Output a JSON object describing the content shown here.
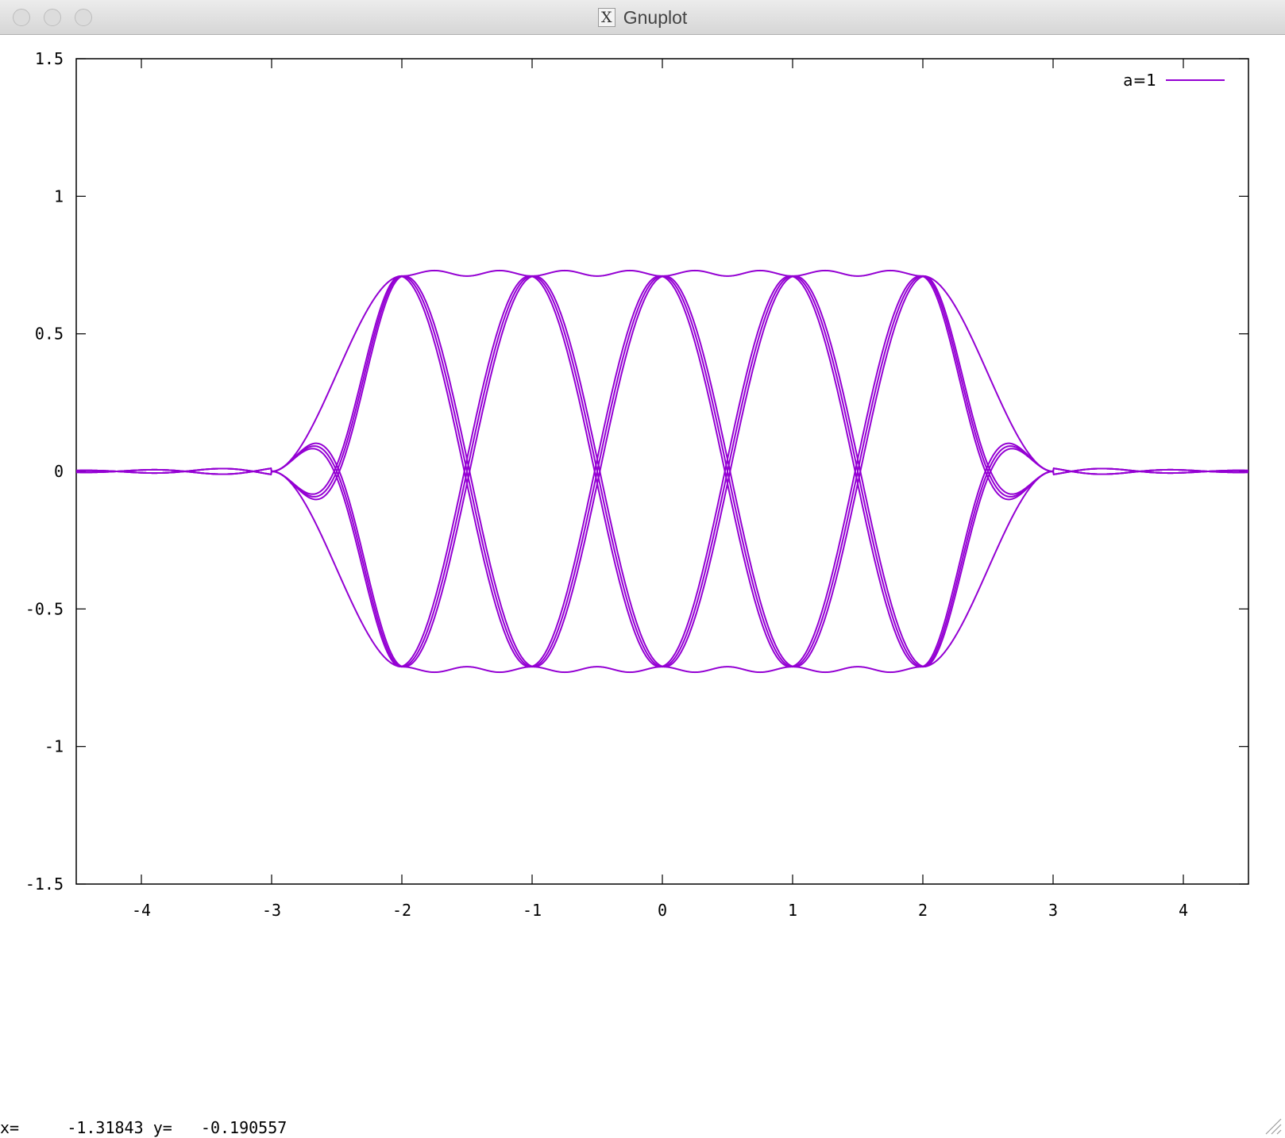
{
  "window": {
    "title": "Gnuplot",
    "app_icon": "x11-icon",
    "controls": [
      "close-button",
      "minimize-button",
      "zoom-button"
    ]
  },
  "chart_data": {
    "type": "line",
    "title": "",
    "xlabel": "",
    "ylabel": "",
    "xlim": [
      -4.5,
      4.5
    ],
    "ylim": [
      -1.5,
      1.5
    ],
    "xticks": [
      -4,
      -3,
      -2,
      -1,
      0,
      1,
      2,
      3,
      4
    ],
    "yticks": [
      -1.5,
      -1,
      -0.5,
      0,
      0.5,
      1,
      1.5
    ],
    "xtick_labels": [
      "-4",
      "-3",
      "-2",
      "-1",
      "0",
      "1",
      "2",
      "3",
      "4"
    ],
    "ytick_labels": [
      "-1.5",
      "-1",
      "-0.5",
      "0",
      "0.5",
      "1",
      "1.5"
    ],
    "grid": false,
    "legend_position": "top-right",
    "series": [
      {
        "name": "a=1",
        "color": "#9400d3",
        "description_points": {
          "envelope_peak_y": 0.71,
          "crossings_x": [
            -3,
            -2,
            -1.5,
            -1,
            -0.5,
            0,
            0.5,
            1,
            1.5,
            2,
            3
          ],
          "outer_support_x": [
            -3,
            3
          ]
        }
      }
    ]
  },
  "status": {
    "x_label": "x=",
    "x_value": "-1.31843",
    "y_label": "y=",
    "y_value": "-0.190557"
  }
}
